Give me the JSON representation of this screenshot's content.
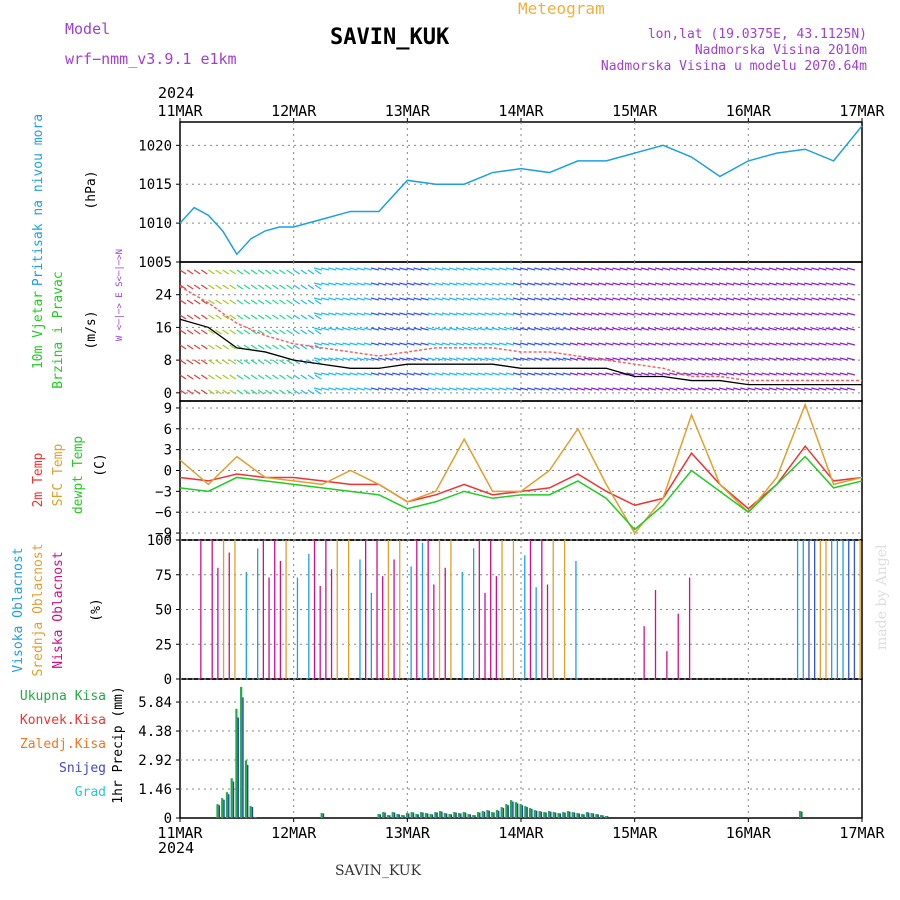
{
  "header": {
    "model_label": "Model",
    "model_name": "wrf−nmm_v3.9.1 e1km",
    "station": "SAVIN_KUK",
    "meteogram": "Meteogram",
    "lonlat": "lon,lat (19.0375E, 43.1125N)",
    "elevation": "Nadmorska Visina 2010m",
    "model_elevation": "Nadmorska Visina u modelu 2070.64m",
    "year_top": "2024",
    "year_bottom": "2024",
    "footer_station": "SAVIN_KUK",
    "credit": "made by Angel"
  },
  "colors": {
    "pressure": "#1ea0e0",
    "wind_label": "#22cc22",
    "temp2m": "#ee3333",
    "sfc": "#e0a030",
    "dewpt": "#22cc22",
    "high_cloud": "#1ea0e0",
    "mid_cloud": "#e0a030",
    "low_cloud": "#cc1188",
    "precip": "#22aa44",
    "precip_dark": "#2244aa",
    "rain": "#22aa44",
    "conv": "#ee3333",
    "frz": "#ee7722",
    "snow": "#4444cc",
    "hail": "#22cccc",
    "header_purple": "#a040d0",
    "meteogram_orange": "#f0b040"
  },
  "chart_data": [
    {
      "type": "line",
      "name": "pressure",
      "x_ticks": [
        "11MAR",
        "12MAR",
        "13MAR",
        "14MAR",
        "15MAR",
        "16MAR",
        "17MAR"
      ],
      "ylabel_a": "Pritisak na nivou mora",
      "ylabel_b": "(hPa)",
      "ylim": [
        1005,
        1023
      ],
      "y_ticks": [
        1005,
        1010,
        1015,
        1020
      ],
      "x_hours": [
        0,
        3,
        6,
        9,
        12,
        15,
        18,
        21,
        24,
        30,
        36,
        42,
        48,
        54,
        60,
        66,
        72,
        78,
        84,
        90,
        96,
        102,
        108,
        114,
        120,
        126,
        132,
        138,
        144
      ],
      "values": [
        1010,
        1012,
        1011,
        1009,
        1006,
        1008,
        1009,
        1009.5,
        1009.5,
        1010.5,
        1011.5,
        1011.5,
        1015.5,
        1015,
        1015,
        1016.5,
        1017,
        1016.5,
        1018,
        1018,
        1019,
        1020,
        1018.5,
        1016,
        1018,
        1019,
        1019.5,
        1018,
        1022.5
      ]
    },
    {
      "type": "line",
      "name": "wind",
      "ylabel_a": "10m Vjetar",
      "ylabel_b": "Brzina i Pravac",
      "ylabel_c": "(m/s)",
      "compass": "W <─|─> E  S<─|─>N",
      "ylim": [
        -2,
        32
      ],
      "y_ticks": [
        0,
        8,
        16,
        24
      ],
      "x_hours": [
        0,
        6,
        12,
        18,
        24,
        30,
        36,
        42,
        48,
        54,
        60,
        66,
        72,
        78,
        84,
        90,
        96,
        102,
        108,
        114,
        120,
        126,
        132,
        138,
        144
      ],
      "speed": [
        18,
        16,
        11,
        10,
        8,
        7,
        6,
        6,
        7,
        7,
        7,
        7,
        6,
        6,
        6,
        6,
        4,
        4,
        3,
        3,
        2,
        2,
        2,
        2,
        2
      ],
      "gust": [
        26,
        22,
        17,
        14,
        12,
        11,
        10,
        9,
        10,
        11,
        11,
        11,
        10,
        10,
        9,
        8,
        7,
        6,
        4,
        4,
        3,
        3,
        3,
        3,
        3
      ]
    },
    {
      "type": "line",
      "name": "temperature",
      "ylabel_a": "2m Temp",
      "ylabel_b": "SFC Temp",
      "ylabel_c": "dewpt Temp",
      "ylabel_d": "(C)",
      "ylim": [
        -10,
        10
      ],
      "y_ticks": [
        -9,
        -6,
        -3,
        0,
        3,
        6,
        9
      ],
      "x_hours": [
        0,
        6,
        12,
        18,
        24,
        30,
        36,
        42,
        48,
        54,
        60,
        66,
        72,
        78,
        84,
        90,
        96,
        102,
        108,
        114,
        120,
        126,
        132,
        138,
        144
      ],
      "series": [
        {
          "name": "2m Temp",
          "values": [
            -1,
            -1.5,
            -0.5,
            -1,
            -1,
            -1.5,
            -2,
            -2,
            -4.5,
            -3.5,
            -2,
            -3.5,
            -3,
            -2.5,
            -0.5,
            -3,
            -5,
            -4,
            2.5,
            -2,
            -5.5,
            -2,
            3.5,
            -1.5,
            -1
          ]
        },
        {
          "name": "SFC Temp",
          "values": [
            1.5,
            -2,
            2,
            -1,
            -1.5,
            -2,
            0,
            -2,
            -4.5,
            -3,
            4.5,
            -3,
            -3,
            0,
            6,
            -2,
            -9,
            -4,
            8,
            -2,
            -6,
            -1,
            9.5,
            -2,
            -1
          ]
        },
        {
          "name": "dewpt Temp",
          "values": [
            -2.5,
            -3,
            -1,
            -1.5,
            -2,
            -2.5,
            -3,
            -3.5,
            -5.5,
            -4.5,
            -3,
            -4,
            -3.5,
            -3.5,
            -1.5,
            -4,
            -8.5,
            -5,
            0,
            -3,
            -6,
            -2,
            2,
            -2.5,
            -1.5
          ]
        }
      ]
    },
    {
      "type": "bar",
      "name": "cloud",
      "ylabel_a": "Visoka Oblacnost",
      "ylabel_b": "Srednja Oblacnost",
      "ylabel_c": "Niska Oblacnost",
      "ylabel_d": "(%)",
      "ylim": [
        0,
        100
      ],
      "y_ticks": [
        0,
        25,
        50,
        75,
        100
      ],
      "note": "dense bars 11MAR-14.5MAR, sparse low cloud 14.5-16.4MAR, high cloud 16.4-17MAR"
    },
    {
      "type": "bar",
      "name": "precip",
      "ylabel_a": "1hr Precip (mm)",
      "ylim": [
        0,
        7
      ],
      "y_ticks": [
        0,
        1.46,
        2.92,
        4.38,
        5.84
      ],
      "legend": [
        "Ukupna Kisa",
        "Konvek.Kisa",
        "Zaledj.Kisa",
        "Snijeg",
        "Grad"
      ],
      "x_hours": [
        8,
        9,
        10,
        11,
        12,
        13,
        14,
        15,
        16,
        30,
        42,
        43,
        44,
        45,
        46,
        47,
        48,
        49,
        50,
        51,
        52,
        53,
        54,
        55,
        56,
        57,
        58,
        59,
        60,
        61,
        62,
        63,
        64,
        65,
        66,
        67,
        68,
        69,
        70,
        71,
        72,
        73,
        74,
        75,
        76,
        77,
        78,
        79,
        80,
        81,
        82,
        83,
        84,
        85,
        86,
        87,
        88,
        89,
        90,
        131
      ],
      "values": [
        0.7,
        1.0,
        1.3,
        2.0,
        5.5,
        6.6,
        2.9,
        0.6,
        0.05,
        0.25,
        0.2,
        0.3,
        0.15,
        0.3,
        0.2,
        0.15,
        0.25,
        0.3,
        0.2,
        0.3,
        0.25,
        0.2,
        0.3,
        0.35,
        0.25,
        0.2,
        0.3,
        0.25,
        0.3,
        0.2,
        0.15,
        0.3,
        0.35,
        0.4,
        0.3,
        0.4,
        0.55,
        0.7,
        0.9,
        0.8,
        0.7,
        0.6,
        0.5,
        0.4,
        0.35,
        0.3,
        0.35,
        0.3,
        0.25,
        0.3,
        0.35,
        0.3,
        0.25,
        0.2,
        0.3,
        0.25,
        0.2,
        0.15,
        0.1,
        0.35
      ]
    }
  ]
}
